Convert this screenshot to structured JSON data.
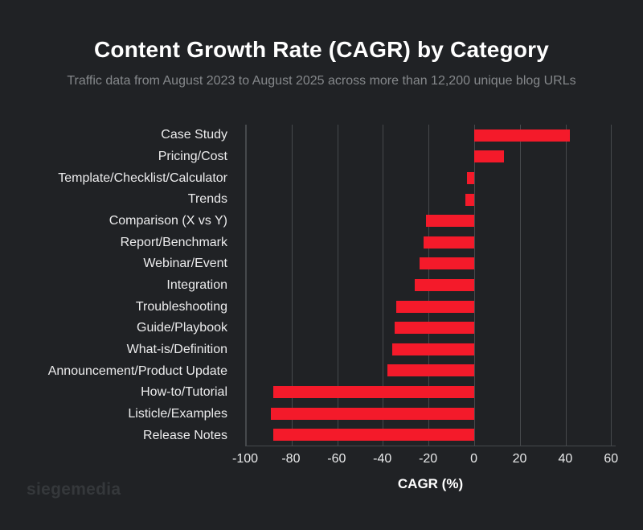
{
  "page": {
    "title": "Content Growth Rate (CAGR) by Category",
    "subtitle": "Traffic data from August 2023 to August 2025 across more than 12,200 unique blog URLs",
    "footer_logo": "siegemedia"
  },
  "colors": {
    "background": "#202225",
    "bar": "#f41a2a",
    "title": "#ffffff",
    "subtitle": "#85888b",
    "grid": "#46494c",
    "tick_label": "#e9eaeb",
    "logo": "#35383b"
  },
  "chart_data": {
    "type": "bar",
    "orientation": "horizontal",
    "title": "Content Growth Rate (CAGR) by Category",
    "subtitle": "Traffic data from August 2023 to August 2025 across more than 12,200 unique blog URLs",
    "xlabel": "CAGR (%)",
    "ylabel": "",
    "categories": [
      "Case Study",
      "Pricing/Cost",
      "Template/Checklist/Calculator",
      "Trends",
      "Comparison (X vs Y)",
      "Report/Benchmark",
      "Webinar/Event",
      "Integration",
      "Troubleshooting",
      "Guide/Playbook",
      "What-is/Definition",
      "Announcement/Product Update",
      "How-to/Tutorial",
      "Listicle/Examples",
      "Release Notes"
    ],
    "values": [
      42,
      13,
      -3,
      -4,
      -21,
      -22,
      -24,
      -26,
      -34,
      -35,
      -36,
      -38,
      -88,
      -89,
      -88
    ],
    "xlim": [
      -100,
      62
    ],
    "xticks": [
      -100,
      -80,
      -60,
      -40,
      -20,
      0,
      20,
      40,
      60
    ],
    "grid": true,
    "legend": false
  }
}
